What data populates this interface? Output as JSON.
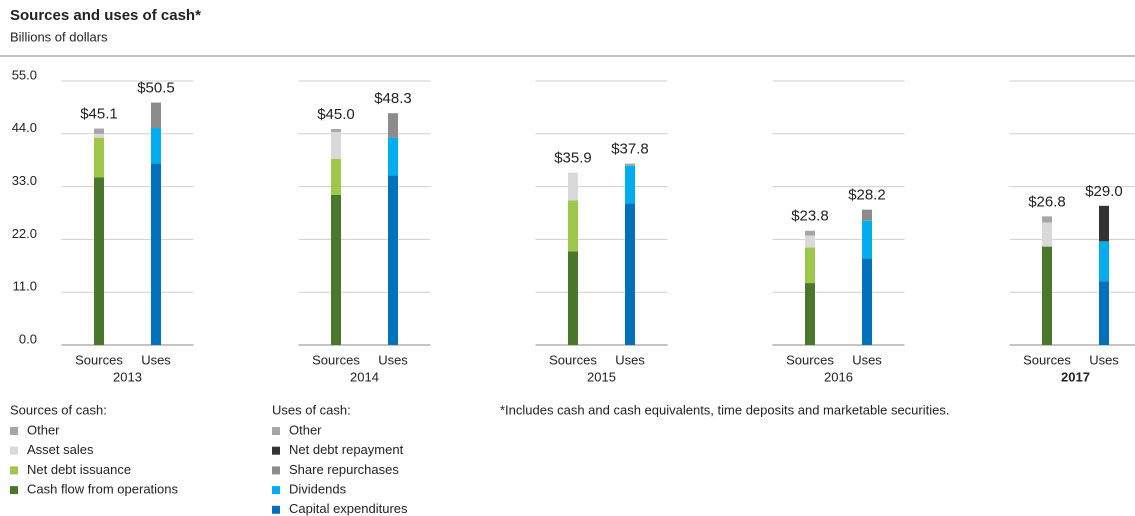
{
  "chart_data": {
    "type": "grouped-stacked-bar",
    "title": "Sources and uses of cash*",
    "subtitle": "Billions of dollars",
    "footnote": "*Includes cash and cash equivalents, time deposits and marketable securities.",
    "categories": [
      "2013",
      "2014",
      "2015",
      "2016",
      "2017"
    ],
    "highlight": [
      false,
      false,
      false,
      false,
      true
    ],
    "ylim": [
      0,
      55
    ],
    "yticks": [
      {
        "value": 0,
        "label": "0.0"
      },
      {
        "value": 11,
        "label": "11.0"
      },
      {
        "value": 22,
        "label": "22.0"
      },
      {
        "value": 33,
        "label": "33.0"
      },
      {
        "value": 44,
        "label": "44.0"
      },
      {
        "value": 55,
        "label": "55.0"
      }
    ],
    "grid": true,
    "bars": [
      {
        "name": "Sources",
        "legend_title": "Sources of cash:",
        "values": [
          45.1,
          45.0,
          35.9,
          23.8,
          26.8
        ],
        "value_labels": [
          "$45.1",
          "$45.0",
          "$35.9",
          "$23.8",
          "$26.8"
        ],
        "series": [
          {
            "name": "Cash flow from operations",
            "color": "#4a7729",
            "values": [
              34.9,
              31.3,
              19.5,
              12.9,
              20.5
            ]
          },
          {
            "name": "Net debt issuance",
            "color": "#9dc84b",
            "values": [
              8.3,
              7.5,
              10.6,
              7.4,
              0
            ]
          },
          {
            "name": "Asset sales",
            "color": "#d9d9d9",
            "values": [
              0.8,
              5.6,
              5.8,
              2.5,
              5.0
            ]
          },
          {
            "name": "Other",
            "color": "#a6a6a6",
            "values": [
              1.1,
              0.6,
              0,
              1.0,
              1.3
            ]
          }
        ]
      },
      {
        "name": "Uses",
        "legend_title": "Uses of cash:",
        "values": [
          50.5,
          48.3,
          37.8,
          28.2,
          29.0
        ],
        "value_labels": [
          "$50.5",
          "$48.3",
          "$37.8",
          "$28.2",
          "$29.0"
        ],
        "series": [
          {
            "name": "Capital expenditures",
            "color": "#0072bc",
            "values": [
              37.8,
              35.3,
              29.5,
              18.0,
              13.3
            ]
          },
          {
            "name": "Dividends",
            "color": "#00aeef",
            "values": [
              7.4,
              7.9,
              7.8,
              7.9,
              8.3
            ]
          },
          {
            "name": "Share repurchases",
            "color": "#8c8c8c",
            "values": [
              5.3,
              5.1,
              0,
              2.3,
              0
            ]
          },
          {
            "name": "Net debt repayment",
            "color": "#333333",
            "values": [
              0,
              0,
              0,
              0,
              7.4
            ]
          },
          {
            "name": "Other",
            "color": "#a6a6a6",
            "values": [
              0,
              0,
              0.5,
              0,
              0
            ]
          }
        ]
      }
    ]
  }
}
